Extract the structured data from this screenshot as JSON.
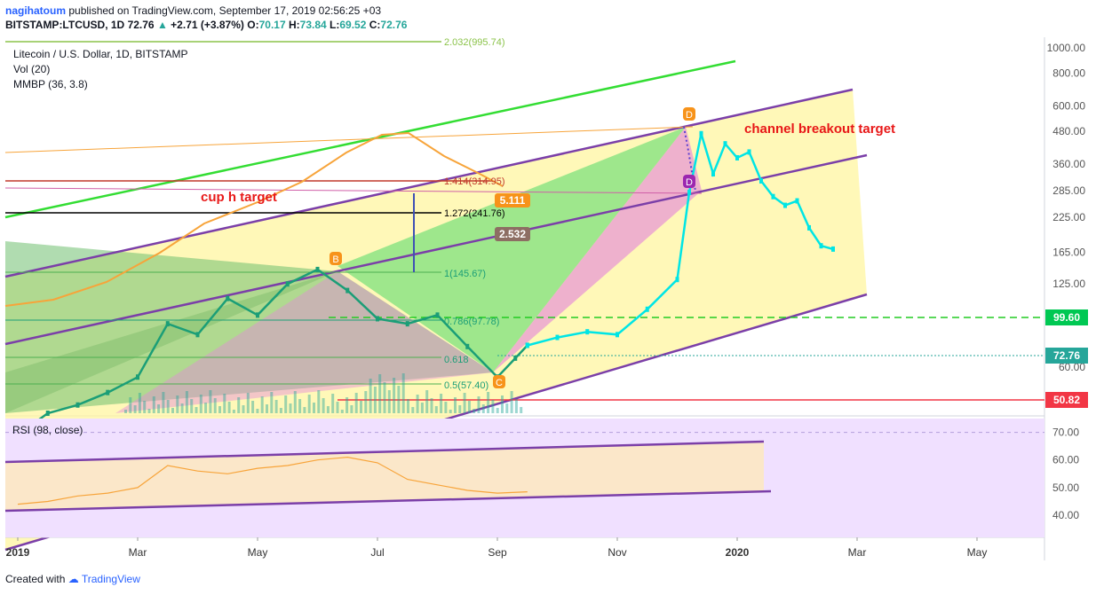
{
  "header": {
    "author": "nagihatoum",
    "published_text": "published on TradingView.com, September 17, 2019 02:56:25 +03",
    "symbol": "BITSTAMP:LTCUSD, 1D",
    "last": "72.76",
    "change": "+2.71 (+3.87%)",
    "o_label": "O:",
    "o": "70.17",
    "h_label": "H:",
    "h": "73.84",
    "l_label": "L:",
    "l": "69.52",
    "c_label": "C:",
    "c": "72.76"
  },
  "legend": {
    "title": "Litecoin / U.S. Dollar, 1D, BITSTAMP",
    "vol": "Vol (20)",
    "mmbp": "MMBP (36, 3.8)"
  },
  "footer": {
    "created_with": "Created with",
    "brand": "TradingView"
  },
  "colors": {
    "candle": "#00e5e5",
    "price_line": "#bdbdbd",
    "volume": "#26a69a",
    "channel": "#7b3fa8",
    "green_line": "#33dd33",
    "fib_line": "#4caf50",
    "cyan_level": "#00aa55",
    "red_level": "#f23645",
    "orange_ma": "#f7a43a",
    "harmonic_green": "#7ee27e",
    "harmonic_pink": "#e58ad9",
    "channel_fill": "#fff6a0",
    "rsi_fill": "#f0e0ff",
    "label_red": "#e81818",
    "axis_text": "#787b86"
  },
  "chart_data": {
    "type": "line",
    "title": "Litecoin / U.S. Dollar, 1D, BITSTAMP",
    "scale": "log",
    "ylim": [
      40,
      1100
    ],
    "y_ticks": [
      "1000.00",
      "800.00",
      "600.00",
      "480.00",
      "360.00",
      "285.00",
      "225.00",
      "165.00",
      "125.00",
      "99.60",
      "60.00",
      "50.82"
    ],
    "y_tick_values": [
      1000,
      800,
      600,
      480,
      360,
      285,
      225,
      165,
      125,
      99.6,
      60,
      50.82
    ],
    "last_price_label": "72.76",
    "level_labels": [
      {
        "label": "99.60",
        "value": 99.6,
        "color": "#00c853"
      },
      {
        "label": "72.76",
        "value": 72.76,
        "color": "#26a69a"
      },
      {
        "label": "50.82",
        "value": 50.82,
        "color": "#f23645"
      }
    ],
    "x_tick_labels": [
      "2019",
      "Mar",
      "May",
      "Jul",
      "Sep",
      "Nov",
      "2020",
      "Mar",
      "May"
    ],
    "x_tick_months": [
      0,
      2,
      4,
      6,
      8,
      10,
      12,
      14,
      16
    ],
    "series": [
      {
        "kind": "actual",
        "t": [
          0,
          0.5,
          1,
          1.5,
          2,
          2.5,
          3,
          3.5,
          4,
          4.5,
          5,
          5.5,
          6,
          6.5,
          7,
          7.5,
          8,
          8.3,
          8.5
        ],
        "values": [
          33,
          40,
          43,
          48,
          55,
          88,
          80,
          110,
          95,
          125,
          142,
          118,
          92,
          88,
          95,
          72,
          55,
          65,
          72.76
        ]
      },
      {
        "kind": "projection",
        "t": [
          8.5,
          9,
          9.5,
          10,
          10.5,
          11,
          11.2,
          11.4,
          11.6,
          11.8,
          12,
          12.2,
          12.4,
          12.6,
          12.8,
          13,
          13.2,
          13.4,
          13.6
        ],
        "values": [
          72.76,
          78,
          82,
          80,
          100,
          130,
          280,
          470,
          330,
          430,
          380,
          400,
          310,
          270,
          250,
          260,
          205,
          175,
          170
        ]
      }
    ],
    "fib_levels": [
      {
        "label": "2.032(995.74)",
        "value": 995.74
      },
      {
        "label": "1.414(314.95)",
        "value": 314.95
      },
      {
        "label": "1.272(241.76)",
        "value": 241.76
      },
      {
        "label": "1(145.67)",
        "value": 145.67
      },
      {
        "label": "0.786(97.78)",
        "value": 97.78
      },
      {
        "label": "0.618",
        "value": 75
      },
      {
        "label": "0.5(57.40)",
        "value": 57.4
      }
    ],
    "harmonic_points": [
      {
        "label": "B",
        "t": 5.2,
        "value": 150
      },
      {
        "label": "C",
        "t": 8.0,
        "value": 58
      },
      {
        "label": "D",
        "t": 11.2,
        "value": 595
      },
      {
        "label": "D",
        "t": 11.2,
        "value": 305
      }
    ],
    "ratio_labels": [
      {
        "label": "5.111",
        "t": 8.0,
        "value": 262
      },
      {
        "label": "2.532",
        "t": 8.0,
        "value": 205
      }
    ],
    "annotations": [
      "cup h target",
      "channel breakout target"
    ],
    "rsi": {
      "title": "RSI (98, close)",
      "ylim": [
        32,
        75
      ],
      "y_ticks": [
        "70.00",
        "60.00",
        "50.00",
        "40.00"
      ],
      "y_tick_values": [
        70,
        60,
        50,
        40
      ],
      "t": [
        0,
        0.5,
        1,
        1.5,
        2,
        2.5,
        3,
        3.5,
        4,
        4.5,
        5,
        5.5,
        6,
        6.5,
        7,
        7.5,
        8,
        8.5
      ],
      "values": [
        44,
        45,
        47,
        48,
        50,
        58,
        56,
        55,
        57,
        58,
        60,
        61,
        59,
        53,
        51,
        49,
        48,
        48.5
      ]
    }
  }
}
